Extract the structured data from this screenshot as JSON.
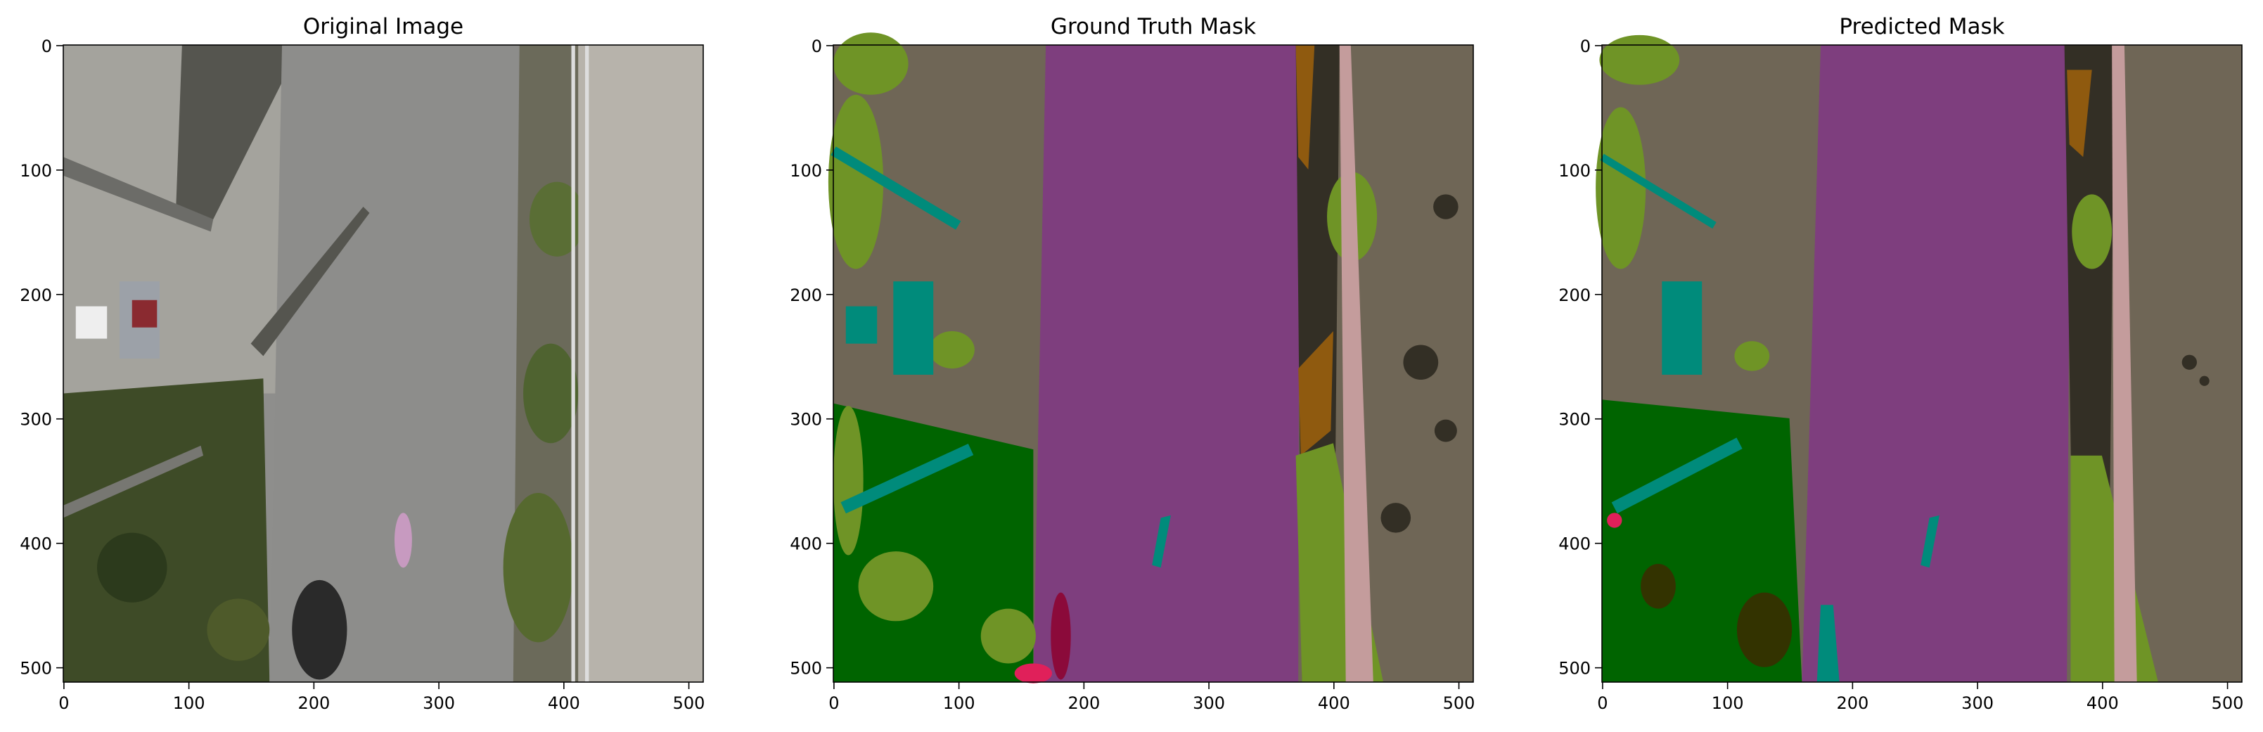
{
  "chart_data": [
    {
      "type": "image",
      "title": "Original Image",
      "xlim": [
        -0.5,
        511.5
      ],
      "ylim": [
        511.5,
        -0.5
      ],
      "xticks": [
        0,
        100,
        200,
        300,
        400,
        500
      ],
      "yticks": [
        0,
        100,
        200,
        300,
        400,
        500
      ]
    },
    {
      "type": "image",
      "title": "Ground Truth Mask",
      "xlim": [
        -0.5,
        511.5
      ],
      "ylim": [
        511.5,
        -0.5
      ],
      "xticks": [
        0,
        100,
        200,
        300,
        400,
        500
      ],
      "yticks": [
        0,
        100,
        200,
        300,
        400,
        500
      ]
    },
    {
      "type": "image",
      "title": "Predicted Mask",
      "xlim": [
        -0.5,
        511.5
      ],
      "ylim": [
        511.5,
        -0.5
      ],
      "xticks": [
        0,
        100,
        200,
        300,
        400,
        500
      ],
      "yticks": [
        0,
        100,
        200,
        300,
        400,
        500
      ]
    }
  ]
}
